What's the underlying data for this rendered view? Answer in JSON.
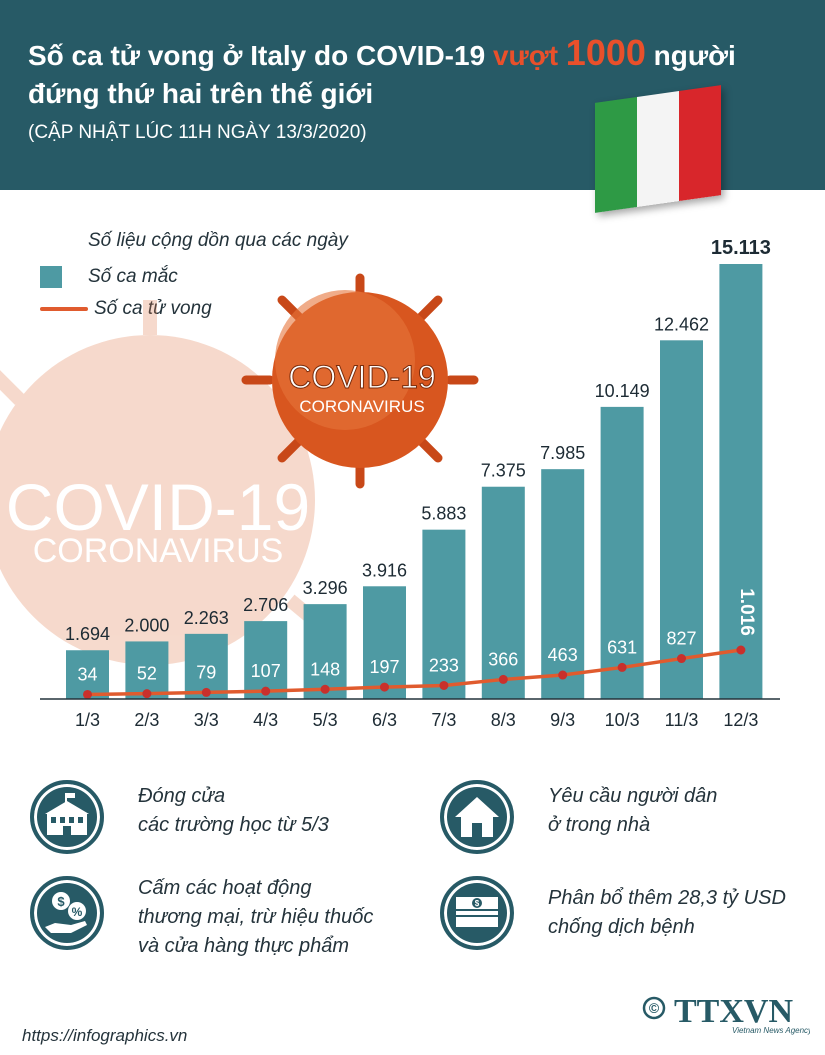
{
  "header": {
    "title_part1": "Số ca tử vong ở Italy do COVID-19 ",
    "title_highlight": "vượt",
    "title_number": "1000",
    "title_part2": " người",
    "title_line2": "đứng thứ hai trên thế giới",
    "subtitle": "(CẬP NHẬT LÚC 11H NGÀY 13/3/2020)"
  },
  "legend": {
    "title": "Số liệu cộng dồn qua các ngày",
    "cases_label": "Số ca mắc",
    "deaths_label": "Số ca tử vong"
  },
  "decor": {
    "virus_big_line1": "COVID-19",
    "virus_big_line2": "CORONAVIRUS",
    "virus_small_line1": "COVID-19",
    "virus_small_line2": "CORONAVIRUS"
  },
  "colors": {
    "header_bg": "#275a66",
    "bar": "#4e9aa3",
    "death_line": "#e05b2e",
    "death_point": "#c9302c",
    "highlight": "#e9502b"
  },
  "chart_data": {
    "type": "bar",
    "categories": [
      "1/3",
      "2/3",
      "3/3",
      "4/3",
      "5/3",
      "6/3",
      "7/3",
      "8/3",
      "9/3",
      "10/3",
      "11/3",
      "12/3"
    ],
    "series": [
      {
        "name": "Số ca mắc",
        "type": "bar",
        "values": [
          1694,
          2000,
          2263,
          2706,
          3296,
          3916,
          5883,
          7375,
          7985,
          10149,
          12462,
          15113
        ]
      },
      {
        "name": "Số ca tử vong",
        "type": "line",
        "values": [
          34,
          52,
          79,
          107,
          148,
          197,
          233,
          366,
          463,
          631,
          827,
          1016
        ]
      }
    ],
    "bar_labels": [
      "1.694",
      "2.000",
      "2.263",
      "2.706",
      "3.296",
      "3.916",
      "5.883",
      "7.375",
      "7.985",
      "10.149",
      "12.462",
      "15.113"
    ],
    "death_labels": [
      "34",
      "52",
      "79",
      "107",
      "148",
      "197",
      "233",
      "366",
      "463",
      "631",
      "827",
      "1.016"
    ],
    "ylim": [
      0,
      15113
    ],
    "grid": false
  },
  "measures": [
    {
      "icon": "school-icon",
      "text_line1": "Đóng cửa",
      "text_line2": "các trường học từ 5/3",
      "text_line3": ""
    },
    {
      "icon": "house-icon",
      "text_line1": "Yêu cầu người dân",
      "text_line2": "ở trong nhà",
      "text_line3": ""
    },
    {
      "icon": "money-hand-icon",
      "text_line1": "Cấm các hoạt động",
      "text_line2": "thương mại, trừ hiệu thuốc",
      "text_line3": "và cửa hàng thực phẩm"
    },
    {
      "icon": "banknotes-icon",
      "text_line1": "Phân bổ thêm 28,3 tỷ USD",
      "text_line2": "chống dịch bệnh",
      "text_line3": ""
    }
  ],
  "footer": {
    "url": "https://infographics.vn",
    "copyright": "©",
    "logo_text": "TTXVN",
    "logo_subtext": "Vietnam News Agency"
  }
}
